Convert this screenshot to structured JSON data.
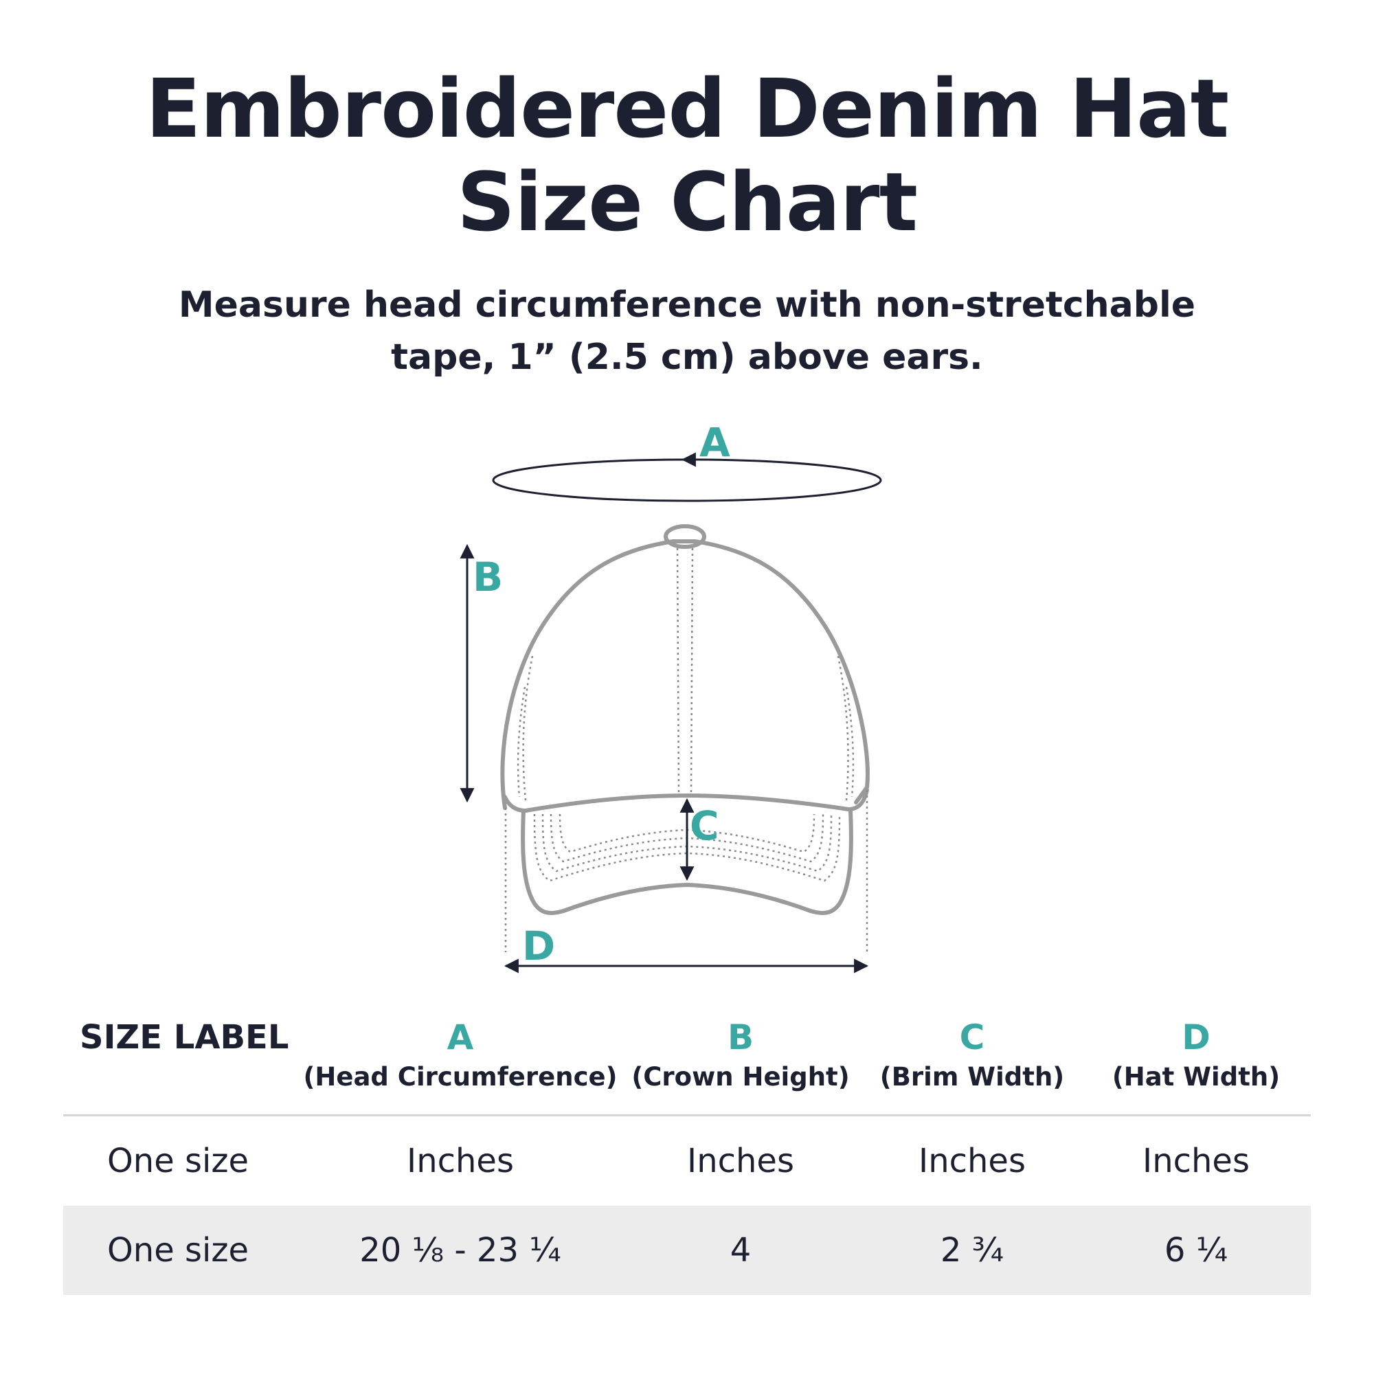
{
  "header": {
    "title_line1": "Embroidered Denim Hat",
    "title_line2": "Size Chart",
    "subtitle_line1": "Measure head circumference with non-stretchable",
    "subtitle_line2": "tape, 1” (2.5 cm) above ears."
  },
  "diagram": {
    "label_a": "A",
    "label_b": "B",
    "label_c": "C",
    "label_d": "D",
    "accent_color": "#3aa8a2",
    "outline_color": "#9a9a9a"
  },
  "table": {
    "headers": [
      {
        "letter": "",
        "desc": "SIZE LABEL"
      },
      {
        "letter": "A",
        "desc": "(Head Circumference)"
      },
      {
        "letter": "B",
        "desc": "(Crown Height)"
      },
      {
        "letter": "C",
        "desc": "(Brim Width)"
      },
      {
        "letter": "D",
        "desc": "(Hat Width)"
      }
    ],
    "rows": [
      [
        "One size",
        "Inches",
        "Inches",
        "Inches",
        "Inches"
      ],
      [
        "One size",
        "20 ⅛ - 23 ¼",
        "4",
        "2 ¾",
        "6 ¼"
      ]
    ]
  }
}
